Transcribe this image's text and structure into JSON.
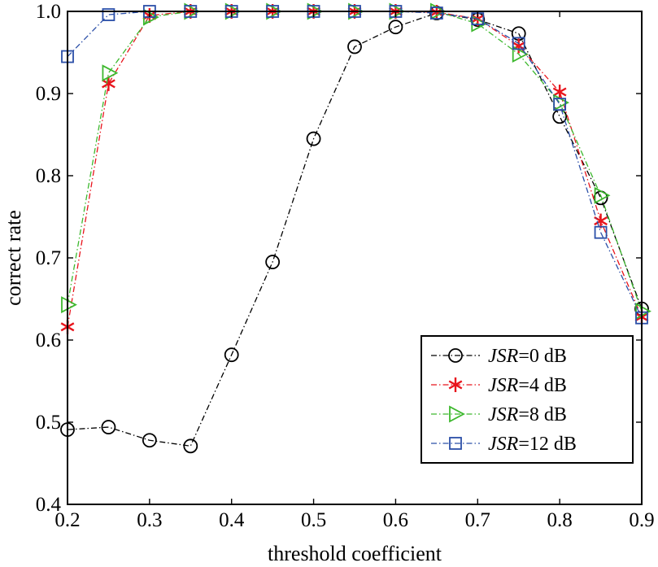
{
  "chart_data": {
    "type": "line",
    "title": "",
    "xlabel": "threshold coefficient",
    "ylabel": "correct rate",
    "xlim": [
      0.2,
      0.9
    ],
    "ylim": [
      0.4,
      1.0
    ],
    "xticks": [
      "0.2",
      "0.3",
      "0.4",
      "0.5",
      "0.6",
      "0.7",
      "0.8",
      "0.9"
    ],
    "yticks": [
      "0.4",
      "0.5",
      "0.6",
      "0.7",
      "0.8",
      "0.9",
      "1.0"
    ],
    "grid": false,
    "legend_position": "bottom-right",
    "x": [
      0.2,
      0.25,
      0.3,
      0.35,
      0.4,
      0.45,
      0.5,
      0.55,
      0.6,
      0.65,
      0.7,
      0.75,
      0.8,
      0.85,
      0.9
    ],
    "series": [
      {
        "name_italic": "JSR",
        "name_rest": "=0 dB",
        "color": "#000000",
        "marker": "circle",
        "values": [
          0.491,
          0.494,
          0.478,
          0.471,
          0.582,
          0.695,
          0.845,
          0.957,
          0.981,
          0.998,
          0.99,
          0.973,
          0.872,
          0.773,
          0.638
        ]
      },
      {
        "name_italic": "JSR",
        "name_rest": "=4 dB",
        "color": "#e8141c",
        "marker": "asterisk",
        "values": [
          0.616,
          0.912,
          0.995,
          1.0,
          1.0,
          1.0,
          1.0,
          1.0,
          1.0,
          0.999,
          0.991,
          0.958,
          0.902,
          0.745,
          0.628
        ]
      },
      {
        "name_italic": "JSR",
        "name_rest": "=8 dB",
        "color": "#3db82e",
        "marker": "triangle-right",
        "values": [
          0.643,
          0.925,
          0.993,
          1.0,
          1.0,
          1.0,
          1.0,
          1.0,
          1.0,
          1.0,
          0.985,
          0.948,
          0.889,
          0.776,
          0.635
        ]
      },
      {
        "name_italic": "JSR",
        "name_rest": "=12 dB",
        "color": "#2b4fa8",
        "marker": "square",
        "values": [
          0.945,
          0.996,
          1.0,
          1.0,
          1.0,
          1.0,
          1.0,
          1.0,
          1.0,
          0.998,
          0.991,
          0.961,
          0.887,
          0.731,
          0.627
        ]
      }
    ]
  }
}
